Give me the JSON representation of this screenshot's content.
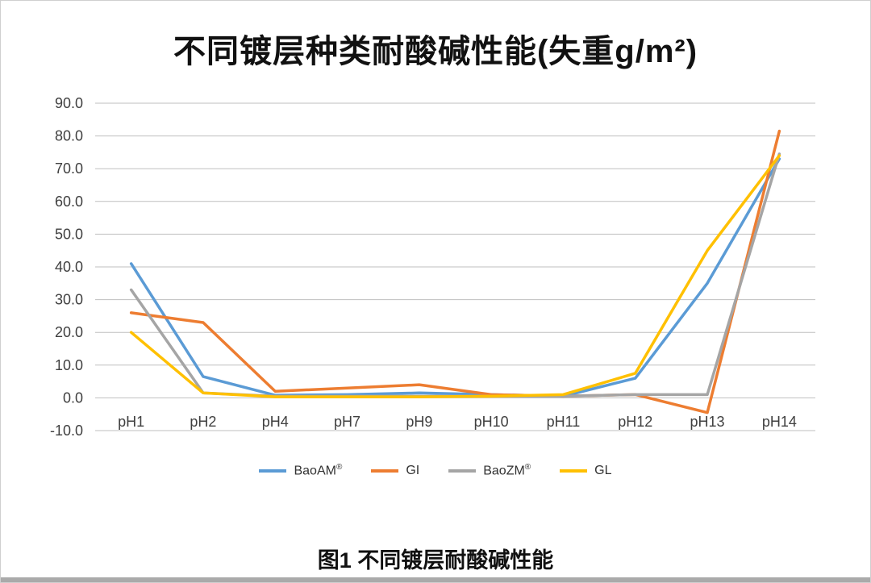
{
  "page": {
    "caption": "图1 不同镀层耐酸碱性能"
  },
  "chart_data": {
    "type": "line",
    "title": "不同镀层种类耐酸碱性能(失重g/m²)",
    "xlabel": "",
    "ylabel": "",
    "categories": [
      "pH1",
      "pH2",
      "pH4",
      "pH7",
      "pH9",
      "pH10",
      "pH11",
      "pH12",
      "pH13",
      "pH14"
    ],
    "series": [
      {
        "name": "BaoAM®",
        "color": "#5B9BD5",
        "values": [
          41.0,
          6.5,
          0.8,
          1.0,
          1.5,
          1.0,
          0.5,
          6.0,
          35.0,
          73.0
        ]
      },
      {
        "name": "GI",
        "color": "#ED7D31",
        "values": [
          26.0,
          23.0,
          2.0,
          3.0,
          4.0,
          1.0,
          0.5,
          1.0,
          -4.5,
          81.5
        ]
      },
      {
        "name": "BaoZM®",
        "color": "#A5A5A5",
        "values": [
          33.0,
          1.5,
          0.5,
          0.5,
          0.5,
          0.5,
          0.5,
          1.0,
          1.0,
          74.5
        ]
      },
      {
        "name": "GL",
        "color": "#FFC000",
        "values": [
          20.0,
          1.5,
          0.3,
          0.3,
          0.3,
          0.5,
          1.0,
          7.5,
          45.0,
          74.0
        ]
      }
    ],
    "ylim": [
      -10,
      90
    ],
    "ytick_step": 10,
    "ytick_decimals": 1,
    "grid": "horizontal-only",
    "gridline_color": "#bfbfbf",
    "tick_label_color": "#404040",
    "legend_position": "bottom"
  }
}
